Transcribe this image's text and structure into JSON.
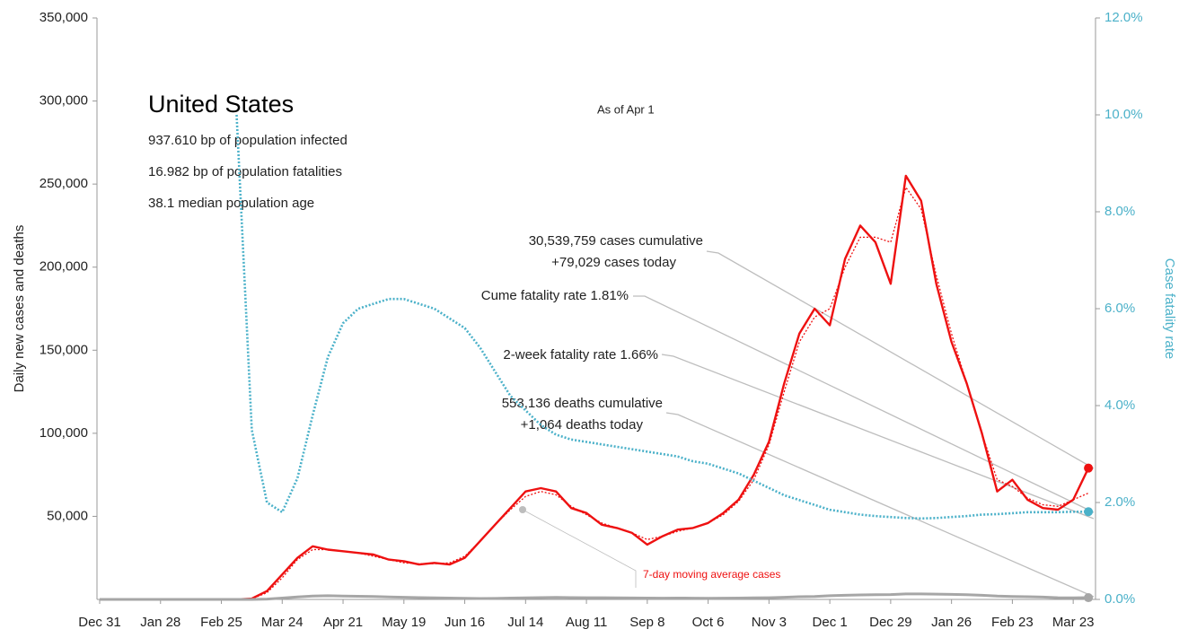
{
  "chart_data": {
    "type": "line",
    "title": "United States",
    "subtitle": "As of Apr 1",
    "info": [
      "937.610 bp of population infected",
      "16.982 bp of population fatalities",
      "38.1 median population age"
    ],
    "ylabel": "Daily new cases and deaths",
    "y2label": "Case fatality rate",
    "annotations": [
      "30,539,759 cases cumulative",
      "+79,029 cases today",
      "Cume fatality rate 1.81%",
      "2-week fatality rate 1.66%",
      "553,136 deaths cumulative",
      "+1,064 deaths today",
      "7-day moving average cases"
    ],
    "categories": [
      "Dec 31",
      null,
      null,
      null,
      "Jan 28",
      null,
      null,
      null,
      "Feb 25",
      null,
      null,
      null,
      "Mar 24",
      null,
      null,
      null,
      "Apr 21",
      null,
      null,
      null,
      "May 19",
      null,
      null,
      null,
      "Jun 16",
      null,
      null,
      null,
      "Jul 14",
      null,
      null,
      null,
      "Aug 11",
      null,
      null,
      null,
      "Sep 8",
      null,
      null,
      null,
      "Oct 6",
      null,
      null,
      null,
      "Nov 3",
      null,
      null,
      null,
      "Dec 1",
      null,
      null,
      null,
      "Dec 29",
      null,
      null,
      null,
      "Jan 26",
      null,
      null,
      null,
      "Feb 23",
      null,
      null,
      null,
      "Mar 23",
      null
    ],
    "ylim": [
      0,
      350000
    ],
    "yticks": [
      {
        "value": 50000,
        "label": "50,000"
      },
      {
        "value": 100000,
        "label": "100,000"
      },
      {
        "value": 150000,
        "label": "150,000"
      },
      {
        "value": 200000,
        "label": "200,000"
      },
      {
        "value": 250000,
        "label": "250,000"
      },
      {
        "value": 300000,
        "label": "300,000"
      },
      {
        "value": 350000,
        "label": "350,000"
      }
    ],
    "y2lim": [
      0,
      12
    ],
    "y2ticks": [
      {
        "value": 0,
        "label": "0.0%"
      },
      {
        "value": 2,
        "label": "2.0%"
      },
      {
        "value": 4,
        "label": "4.0%"
      },
      {
        "value": 6,
        "label": "6.0%"
      },
      {
        "value": 8,
        "label": "8.0%"
      },
      {
        "value": 10,
        "label": "10.0%"
      },
      {
        "value": 12,
        "label": "12.0%"
      }
    ],
    "series": [
      {
        "name": "Daily new cases",
        "color": "#ee1111",
        "style": "solid",
        "values": [
          0,
          0,
          0,
          0,
          0,
          0,
          0,
          0,
          0,
          0,
          500,
          5000,
          15000,
          25000,
          32000,
          30000,
          29000,
          28000,
          27000,
          24000,
          23000,
          21000,
          22000,
          21000,
          25000,
          35000,
          45000,
          55000,
          65000,
          67000,
          65000,
          55000,
          52000,
          45000,
          43000,
          40000,
          33000,
          38000,
          42000,
          43000,
          46000,
          52000,
          60000,
          75000,
          95000,
          130000,
          160000,
          175000,
          165000,
          205000,
          225000,
          215000,
          190000,
          255000,
          240000,
          190000,
          155000,
          130000,
          100000,
          65000,
          72000,
          60000,
          55000,
          54000,
          60000,
          79029
        ]
      },
      {
        "name": "7-day moving average cases",
        "color": "#ee1111",
        "style": "dotted",
        "values": [
          0,
          0,
          0,
          0,
          0,
          0,
          0,
          0,
          0,
          0,
          300,
          4000,
          13000,
          24000,
          30000,
          30000,
          29000,
          28000,
          26000,
          24000,
          22000,
          21500,
          21500,
          22000,
          26000,
          35000,
          45000,
          54000,
          62000,
          65000,
          63000,
          56000,
          51000,
          46000,
          43000,
          40000,
          36000,
          38000,
          41000,
          43000,
          46000,
          51000,
          59000,
          72000,
          93000,
          125000,
          155000,
          170000,
          175000,
          200000,
          218000,
          218000,
          215000,
          248000,
          235000,
          195000,
          160000,
          130000,
          100000,
          72000,
          68000,
          61000,
          57000,
          56000,
          60000,
          64000
        ]
      },
      {
        "name": "Daily new deaths",
        "color": "#a6a6a6",
        "style": "solid",
        "values": [
          0,
          0,
          0,
          0,
          0,
          0,
          0,
          0,
          0,
          0,
          0,
          200,
          800,
          1500,
          2000,
          2200,
          2000,
          1900,
          1800,
          1500,
          1300,
          1100,
          900,
          800,
          650,
          550,
          600,
          800,
          900,
          1100,
          1200,
          1100,
          1000,
          1000,
          950,
          850,
          800,
          750,
          800,
          750,
          720,
          750,
          800,
          900,
          1000,
          1300,
          1600,
          1800,
          2200,
          2500,
          2700,
          2800,
          2900,
          3300,
          3300,
          3200,
          3000,
          2800,
          2500,
          2000,
          1800,
          1600,
          1400,
          1000,
          900,
          1064
        ]
      },
      {
        "name": "Case fatality rate",
        "color": "#4bb1c9",
        "style": "dotted",
        "axis": "y2",
        "values": [
          null,
          null,
          null,
          null,
          null,
          null,
          null,
          null,
          null,
          10.0,
          3.5,
          2.0,
          1.8,
          2.5,
          3.8,
          5.0,
          5.7,
          6.0,
          6.1,
          6.2,
          6.2,
          6.1,
          6.0,
          5.8,
          5.6,
          5.2,
          4.7,
          4.2,
          3.9,
          3.6,
          3.4,
          3.3,
          3.25,
          3.2,
          3.15,
          3.1,
          3.05,
          3.0,
          2.95,
          2.85,
          2.8,
          2.7,
          2.6,
          2.45,
          2.3,
          2.15,
          2.05,
          1.95,
          1.85,
          1.8,
          1.75,
          1.72,
          1.7,
          1.68,
          1.67,
          1.68,
          1.7,
          1.72,
          1.75,
          1.76,
          1.78,
          1.8,
          1.8,
          1.8,
          1.81,
          1.81
        ]
      }
    ]
  }
}
